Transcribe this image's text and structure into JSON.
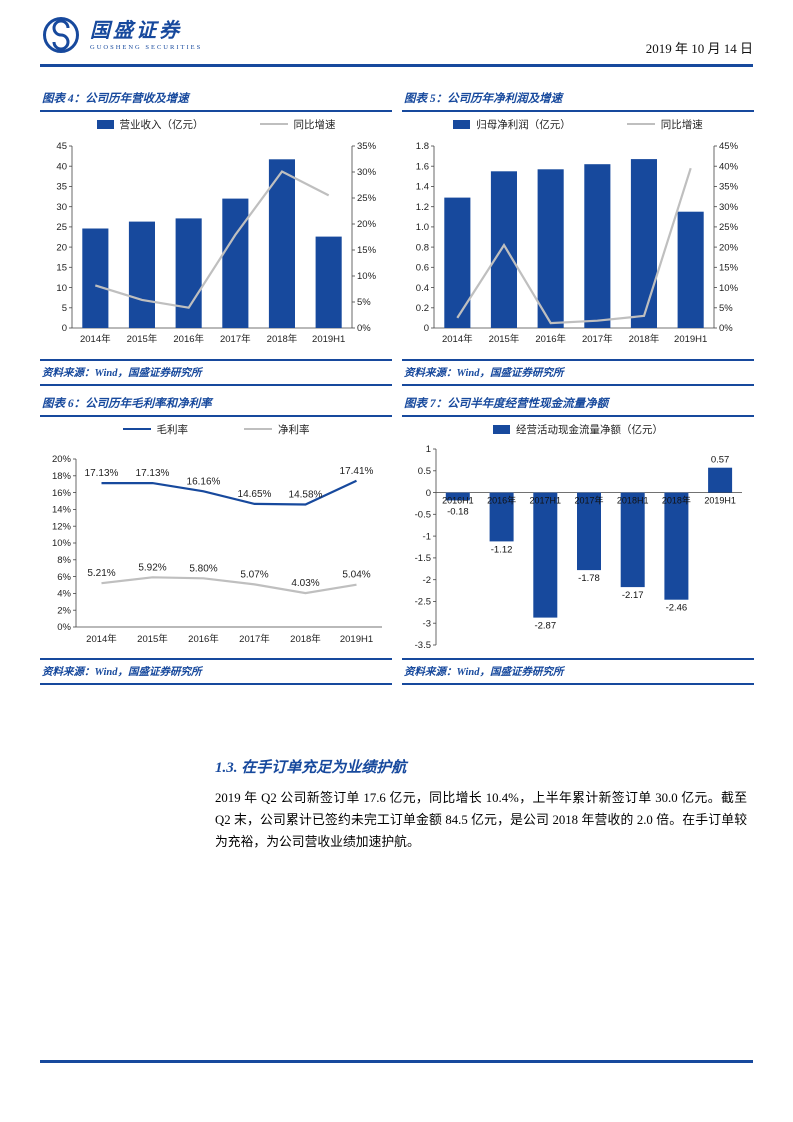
{
  "colors": {
    "brand_blue": "#17499D",
    "bar_blue": "#17499D",
    "line_gray": "#BFBFBF"
  },
  "header": {
    "brand_cn": "国盛证券",
    "brand_en": "GUOSHENG SECURITIES",
    "date": "2019 年 10 月 14 日"
  },
  "figures": [
    {
      "title": "图表 4：公司历年营收及增速",
      "source": "资料来源：Wind，国盛证券研究所"
    },
    {
      "title": "图表 5：公司历年净利润及增速",
      "source": "资料来源：Wind，国盛证券研究所"
    },
    {
      "title": "图表 6：公司历年毛利率和净利率",
      "source": "资料来源：Wind，国盛证券研究所"
    },
    {
      "title": "图表 7：公司半年度经营性现金流量净额",
      "source": "资料来源：Wind，国盛证券研究所"
    }
  ],
  "section": {
    "heading": "1.3. 在手订单充足为业绩护航",
    "paragraph": "2019 年 Q2 公司新签订单 17.6 亿元，同比增长 10.4%，上半年累计新签订单 30.0 亿元。截至 Q2 末，公司累计已签约未完工订单金额 84.5 亿元，是公司 2018 年营收的 2.0 倍。在手订单较为充裕，为公司营收业绩加速护航。"
  },
  "chart_data": [
    {
      "type": "bar+line",
      "title": "公司历年营收及增速",
      "categories": [
        "2014年",
        "2015年",
        "2016年",
        "2017年",
        "2018年",
        "2019H1"
      ],
      "bar_series": {
        "name": "营业收入（亿元）",
        "axis": "left",
        "values": [
          24.6,
          26.3,
          27.1,
          32.0,
          41.7,
          22.6
        ]
      },
      "line_series": {
        "name": "同比增速",
        "axis": "right",
        "unit": "%",
        "values": [
          8.2,
          5.4,
          3.9,
          17.9,
          30.1,
          25.5
        ]
      },
      "left_axis": {
        "min": 0,
        "max": 45,
        "step": 5,
        "format": "int"
      },
      "right_axis": {
        "min": 0,
        "max": 35,
        "step": 5,
        "format": "pct"
      },
      "grid": false,
      "legend_position": "top"
    },
    {
      "type": "bar+line",
      "title": "公司历年净利润及增速",
      "categories": [
        "2014年",
        "2015年",
        "2016年",
        "2017年",
        "2018年",
        "2019H1"
      ],
      "bar_series": {
        "name": "归母净利润（亿元）",
        "axis": "left",
        "values": [
          1.29,
          1.55,
          1.57,
          1.62,
          1.67,
          1.15
        ]
      },
      "line_series": {
        "name": "同比增速",
        "axis": "right",
        "unit": "%",
        "values": [
          2.5,
          20.5,
          1.2,
          1.8,
          3.0,
          39.5
        ]
      },
      "left_axis": {
        "min": 0,
        "max": 1.8,
        "step": 0.2,
        "format": "dec1"
      },
      "right_axis": {
        "min": 0,
        "max": 45,
        "step": 5,
        "format": "pct"
      },
      "grid": false,
      "legend_position": "top"
    },
    {
      "type": "line",
      "title": "公司历年毛利率和净利率",
      "categories": [
        "2014年",
        "2015年",
        "2016年",
        "2017年",
        "2018年",
        "2019H1"
      ],
      "series": [
        {
          "name": "毛利率",
          "color_key": "bar_blue",
          "values": [
            17.13,
            17.13,
            16.16,
            14.65,
            14.58,
            17.41
          ],
          "labels": [
            "17.13%",
            "17.13%",
            "16.16%",
            "14.65%",
            "14.58%",
            "17.41%"
          ]
        },
        {
          "name": "净利率",
          "color_key": "line_gray",
          "values": [
            5.21,
            5.92,
            5.8,
            5.07,
            4.03,
            5.04
          ],
          "labels": [
            "5.21%",
            "5.92%",
            "5.80%",
            "5.07%",
            "4.03%",
            "5.04%"
          ]
        }
      ],
      "y_axis": {
        "min": 0,
        "max": 20,
        "step": 2,
        "format": "pct"
      },
      "grid": false,
      "legend_position": "top"
    },
    {
      "type": "bar",
      "title": "公司半年度经营性现金流量净额",
      "legend": "经营活动现金流量净额（亿元）",
      "categories": [
        "2016H1",
        "2016年",
        "2017H1",
        "2017年",
        "2018H1",
        "2018年",
        "2019H1"
      ],
      "values": [
        -0.18,
        -1.12,
        -2.87,
        -1.78,
        -2.17,
        -2.46,
        0.57
      ],
      "labels": [
        "-0.18",
        "-1.12",
        "-2.87",
        "-1.78",
        "-2.17",
        "-2.46",
        "0.57"
      ],
      "y_axis": {
        "min": -3.5,
        "max": 1,
        "step": 0.5,
        "format": "trim"
      },
      "grid": false,
      "legend_position": "top"
    }
  ]
}
